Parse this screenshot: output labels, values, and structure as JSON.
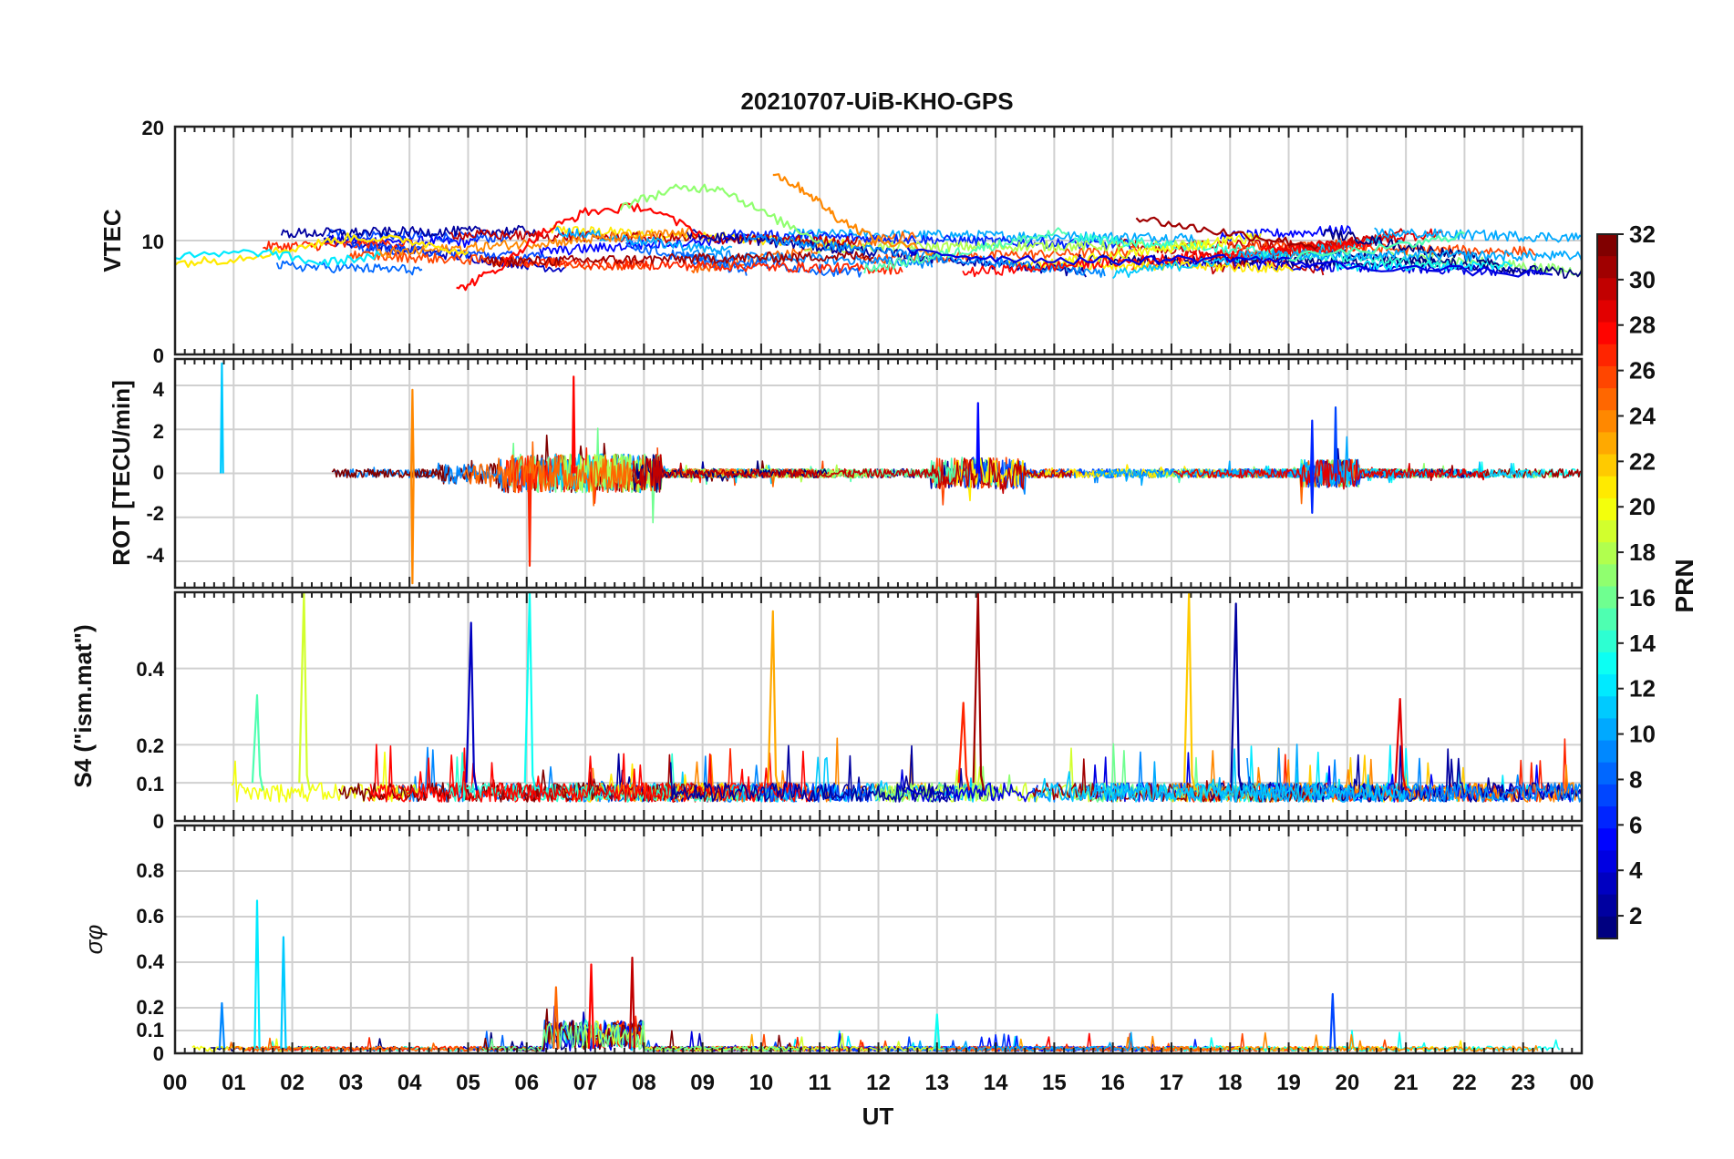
{
  "figure": {
    "title": "20210707-UiB-KHO-GPS",
    "xlabel": "UT",
    "x_tick_labels": [
      "00",
      "01",
      "02",
      "03",
      "04",
      "05",
      "06",
      "07",
      "08",
      "09",
      "10",
      "11",
      "12",
      "13",
      "14",
      "15",
      "16",
      "17",
      "18",
      "19",
      "20",
      "21",
      "22",
      "23",
      "00"
    ],
    "colorbar": {
      "label": "PRN",
      "range": [
        1,
        32
      ],
      "tick_labels": [
        "2",
        "4",
        "6",
        "8",
        "10",
        "12",
        "14",
        "16",
        "18",
        "20",
        "22",
        "24",
        "26",
        "28",
        "30",
        "32"
      ],
      "colormap": "jet"
    }
  },
  "chart_data": [
    {
      "type": "line",
      "panel": "vtec",
      "ylabel": "VTEC",
      "xlim": [
        0,
        24
      ],
      "ylim": [
        0,
        20
      ],
      "ytick_labels": [
        "0",
        "10",
        "20"
      ],
      "grid": true,
      "series": [
        {
          "prn": 21,
          "points": [
            [
              0.0,
              8.0
            ],
            [
              1.0,
              8.4
            ],
            [
              2.0,
              9.3
            ],
            [
              3.0,
              10.3
            ],
            [
              4.0,
              10.0
            ],
            [
              5.0,
              9.0
            ]
          ]
        },
        {
          "prn": 28,
          "points": [
            [
              4.8,
              5.6
            ],
            [
              5.5,
              7.5
            ],
            [
              6.2,
              10.5
            ],
            [
              7.0,
              12.5
            ],
            [
              8.0,
              13.0
            ],
            [
              9.0,
              10.5
            ]
          ]
        },
        {
          "prn": 17,
          "points": [
            [
              7.6,
              13.0
            ],
            [
              8.5,
              14.5
            ],
            [
              9.3,
              14.7
            ],
            [
              10.0,
              12.5
            ],
            [
              11.0,
              10.0
            ]
          ]
        },
        {
          "prn": 24,
          "points": [
            [
              10.2,
              16.0
            ],
            [
              10.8,
              14.2
            ],
            [
              11.3,
              12.0
            ],
            [
              12.0,
              10.0
            ],
            [
              13.0,
              9.0
            ]
          ]
        },
        {
          "prn": 31,
          "points": [
            [
              16.4,
              12.0
            ],
            [
              17.5,
              11.0
            ],
            [
              18.5,
              10.3
            ],
            [
              19.5,
              9.5
            ]
          ]
        },
        {
          "prn": 12,
          "points": [
            [
              0.0,
              8.5
            ],
            [
              1.5,
              9.0
            ],
            [
              2.5,
              8.0
            ],
            [
              3.5,
              8.7
            ]
          ]
        },
        {
          "prn": 4,
          "points": [
            [
              12.5,
              9.0
            ],
            [
              14.0,
              8.5
            ],
            [
              16.0,
              8.2
            ],
            [
              18.0,
              8.5
            ],
            [
              20.0,
              7.8
            ],
            [
              23.5,
              7.0
            ]
          ]
        },
        {
          "prn": 15,
          "points": [
            [
              19.0,
              8.5
            ],
            [
              21.0,
              9.5
            ],
            [
              22.0,
              10.6
            ]
          ]
        }
      ]
    },
    {
      "type": "line",
      "panel": "rot",
      "ylabel": "ROT [TECU/min]",
      "xlim": [
        0,
        24
      ],
      "ylim": [
        -5.2,
        5.2
      ],
      "ytick_labels": [
        "-4",
        "-2",
        "0",
        "2",
        "4"
      ],
      "grid": true,
      "annotations": [
        {
          "x": 0.8,
          "y_max": 5.0,
          "prn": 11
        },
        {
          "x": 4.05,
          "y_max": 3.8,
          "y_min": -5.0,
          "prn": 24
        },
        {
          "x": 6.05,
          "y_min": -4.2,
          "prn": 27
        },
        {
          "x": 6.8,
          "y_max": 4.4,
          "prn": 28
        },
        {
          "x": 13.7,
          "y_max": 3.2,
          "prn": 5
        },
        {
          "x": 19.4,
          "y_max": 2.4,
          "y_min": -1.8,
          "prn": 6
        },
        {
          "x": 19.8,
          "y_max": 3.0,
          "prn": 7
        }
      ]
    },
    {
      "type": "line",
      "panel": "s4",
      "ylabel": "S4 (\"ism.mat\")",
      "xlim": [
        0,
        24
      ],
      "ylim": [
        0,
        0.6
      ],
      "ytick_labels": [
        "0",
        "0.1",
        "0.2",
        "0.4"
      ],
      "grid": true,
      "peaks": [
        {
          "x": 1.4,
          "y": 0.33,
          "prn": 15
        },
        {
          "x": 2.2,
          "y": 0.6,
          "prn": 19
        },
        {
          "x": 5.05,
          "y": 0.52,
          "prn": 3
        },
        {
          "x": 6.05,
          "y": 0.6,
          "prn": 13
        },
        {
          "x": 10.2,
          "y": 0.55,
          "prn": 23
        },
        {
          "x": 13.45,
          "y": 0.31,
          "prn": 27
        },
        {
          "x": 13.7,
          "y": 0.6,
          "prn": 31
        },
        {
          "x": 17.3,
          "y": 0.6,
          "prn": 22
        },
        {
          "x": 18.1,
          "y": 0.57,
          "prn": 2
        },
        {
          "x": 20.9,
          "y": 0.32,
          "prn": 29
        }
      ]
    },
    {
      "type": "line",
      "panel": "sigma_phi",
      "ylabel": "σφ",
      "xlim": [
        0,
        24
      ],
      "ylim": [
        0,
        1.0
      ],
      "ytick_labels": [
        "0",
        "0.1",
        "0.2",
        "0.4",
        "0.6",
        "0.8"
      ],
      "grid": true,
      "peaks": [
        {
          "x": 0.8,
          "y": 0.22,
          "prn": 9
        },
        {
          "x": 1.4,
          "y": 0.67,
          "prn": 12
        },
        {
          "x": 1.85,
          "y": 0.51,
          "prn": 11
        },
        {
          "x": 6.5,
          "y": 0.29,
          "prn": 25
        },
        {
          "x": 7.1,
          "y": 0.39,
          "prn": 28
        },
        {
          "x": 7.8,
          "y": 0.42,
          "prn": 30
        },
        {
          "x": 13.0,
          "y": 0.17,
          "prn": 13
        },
        {
          "x": 19.75,
          "y": 0.26,
          "prn": 7
        }
      ]
    }
  ]
}
